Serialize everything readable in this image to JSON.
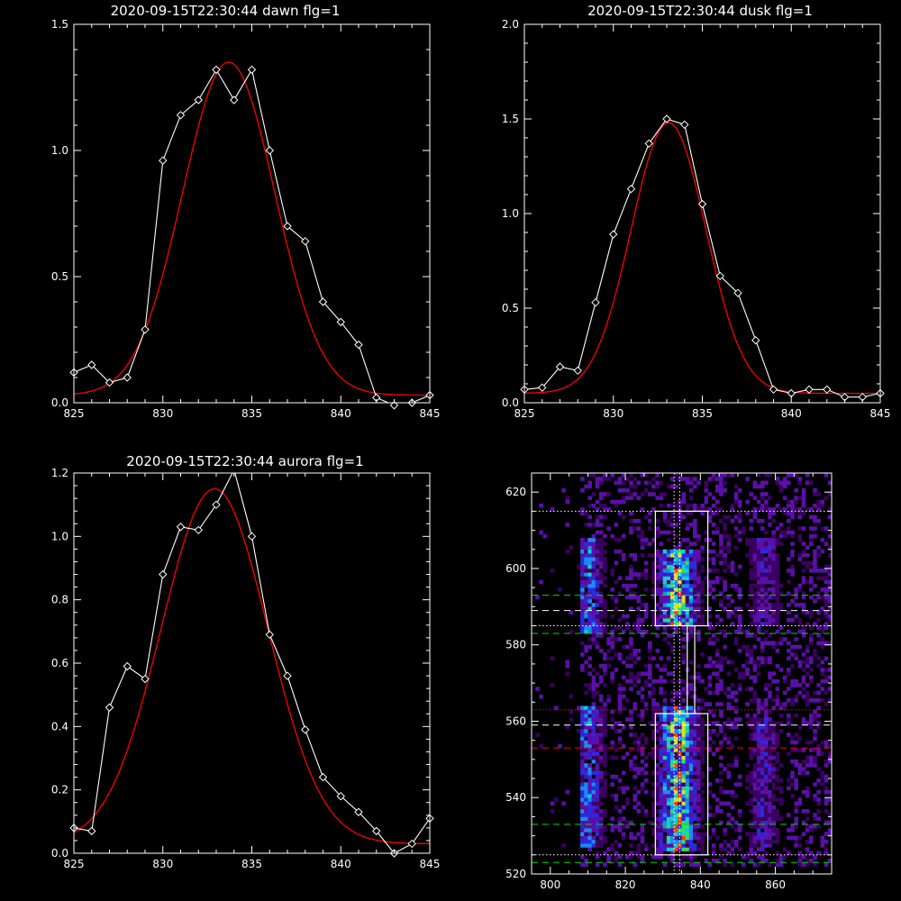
{
  "colors": {
    "background": "#000000",
    "axes": "#ffffff",
    "data_line": "#ffffff",
    "fit_line": "#ff0000",
    "green_dash": "#00dd00",
    "red_dash": "#ff0000",
    "white_dash": "#ffffff"
  },
  "chart_data": [
    {
      "type": "line",
      "title": "2020-09-15T22:30:44 dawn flg=1",
      "xlim": [
        825,
        845
      ],
      "ylim": [
        0,
        1.5
      ],
      "xticks": [
        825,
        830,
        835,
        840,
        845
      ],
      "yticks": [
        0.0,
        0.5,
        1.0,
        1.5
      ],
      "ytick_labels": [
        "0.0",
        "0.5",
        "1.0",
        "1.5"
      ],
      "series": [
        {
          "style": "data",
          "x": [
            825,
            826,
            827,
            828,
            829,
            830,
            831,
            832,
            833,
            834,
            835,
            836,
            837,
            838,
            839,
            840,
            841,
            842,
            843,
            844,
            845
          ],
          "y": [
            0.12,
            0.15,
            0.08,
            0.1,
            0.29,
            0.96,
            1.14,
            1.2,
            1.32,
            1.2,
            1.32,
            1.0,
            0.7,
            0.64,
            0.4,
            0.32,
            0.23,
            0.02,
            -0.01,
            0.0,
            0.03
          ]
        },
        {
          "style": "fit",
          "gaussian": {
            "amplitude": 1.32,
            "center": 833.7,
            "sigma": 2.6,
            "offset": 0.03
          }
        }
      ]
    },
    {
      "type": "line",
      "title": "2020-09-15T22:30:44 dusk flg=1",
      "xlim": [
        825,
        845
      ],
      "ylim": [
        0,
        2.0
      ],
      "xticks": [
        825,
        830,
        835,
        840,
        845
      ],
      "yticks": [
        0.0,
        0.5,
        1.0,
        1.5,
        2.0
      ],
      "ytick_labels": [
        "0.0",
        "0.5",
        "1.0",
        "1.5",
        "2.0"
      ],
      "series": [
        {
          "style": "data",
          "x": [
            825,
            826,
            827,
            828,
            829,
            830,
            831,
            832,
            833,
            834,
            835,
            836,
            837,
            838,
            839,
            840,
            841,
            842,
            843,
            844,
            845
          ],
          "y": [
            0.07,
            0.08,
            0.19,
            0.17,
            0.53,
            0.89,
            1.13,
            1.37,
            1.5,
            1.47,
            1.05,
            0.67,
            0.58,
            0.33,
            0.07,
            0.05,
            0.07,
            0.07,
            0.03,
            0.03,
            0.05
          ]
        },
        {
          "style": "fit",
          "gaussian": {
            "amplitude": 1.43,
            "center": 833.1,
            "sigma": 2.1,
            "offset": 0.05
          }
        }
      ]
    },
    {
      "type": "line",
      "title": "2020-09-15T22:30:44 aurora flg=1",
      "xlim": [
        825,
        845
      ],
      "ylim": [
        0,
        1.2
      ],
      "xticks": [
        825,
        830,
        835,
        840,
        845
      ],
      "yticks": [
        0.0,
        0.2,
        0.4,
        0.6,
        0.8,
        1.0,
        1.2
      ],
      "ytick_labels": [
        "0.0",
        "0.2",
        "0.4",
        "0.6",
        "0.8",
        "1.0",
        "1.2"
      ],
      "series": [
        {
          "style": "data",
          "x": [
            825,
            826,
            827,
            828,
            829,
            830,
            831,
            832,
            833,
            834,
            835,
            836,
            837,
            838,
            839,
            840,
            841,
            842,
            843,
            844,
            845
          ],
          "y": [
            0.08,
            0.07,
            0.46,
            0.59,
            0.55,
            0.88,
            1.03,
            1.02,
            1.1,
            1.21,
            1.0,
            0.69,
            0.56,
            0.39,
            0.24,
            0.18,
            0.13,
            0.07,
            0.0,
            0.03,
            0.11
          ]
        },
        {
          "style": "fit",
          "gaussian": {
            "amplitude": 1.12,
            "center": 832.9,
            "sigma": 3.0,
            "offset": 0.03
          }
        }
      ]
    },
    {
      "type": "heatmap",
      "title": "",
      "xlim": [
        795,
        875
      ],
      "ylim": [
        520,
        625
      ],
      "xticks": [
        800,
        820,
        840,
        860
      ],
      "yticks": [
        520,
        540,
        560,
        580,
        600,
        620
      ],
      "colormap": [
        "#000000",
        "#3a0060",
        "#5a0fa8",
        "#2a2ae0",
        "#1a8cf0",
        "#10d0d0",
        "#30e060",
        "#e0e020",
        "#ff4000"
      ],
      "emission_columns": [
        {
          "x_center": 810,
          "x_halfwidth": 4,
          "y_ranges": [
            [
              527,
              563
            ],
            [
              583,
              607
            ]
          ],
          "intensity": 0.55
        },
        {
          "x_center": 834,
          "x_halfwidth": 5,
          "y_ranges": [
            [
              526,
              563
            ],
            [
              585,
              604
            ]
          ],
          "intensity": 0.95
        },
        {
          "x_center": 857,
          "x_halfwidth": 4,
          "y_ranges": [
            [
              527,
              560
            ],
            [
              585,
              607
            ]
          ],
          "intensity": 0.35
        }
      ],
      "boxes": [
        {
          "x": [
            828,
            842
          ],
          "y": [
            525,
            562
          ]
        },
        {
          "x": [
            828,
            842
          ],
          "y": [
            585,
            615
          ]
        },
        {
          "x": [
            836.5,
            838.5
          ],
          "y": [
            562,
            585
          ]
        }
      ],
      "hlines": [
        {
          "y": 615,
          "style": "dotted",
          "color": "white"
        },
        {
          "y": 593,
          "style": "dashed",
          "color": "green"
        },
        {
          "y": 589,
          "style": "dashed",
          "color": "white"
        },
        {
          "y": 585,
          "style": "dotted",
          "color": "white"
        },
        {
          "y": 583,
          "style": "dashed",
          "color": "green"
        },
        {
          "y": 563,
          "style": "dotted",
          "color": "red"
        },
        {
          "y": 559,
          "style": "dashed",
          "color": "white"
        },
        {
          "y": 553,
          "style": "dashed",
          "color": "red"
        },
        {
          "y": 533,
          "style": "dashed",
          "color": "green"
        },
        {
          "y": 525,
          "style": "dotted",
          "color": "white"
        },
        {
          "y": 523,
          "style": "dashed",
          "color": "green"
        }
      ],
      "vlines": [
        {
          "x": 833,
          "style": "dotted",
          "color": "white"
        },
        {
          "x": 834.5,
          "style": "dotted",
          "color": "white"
        }
      ]
    }
  ]
}
